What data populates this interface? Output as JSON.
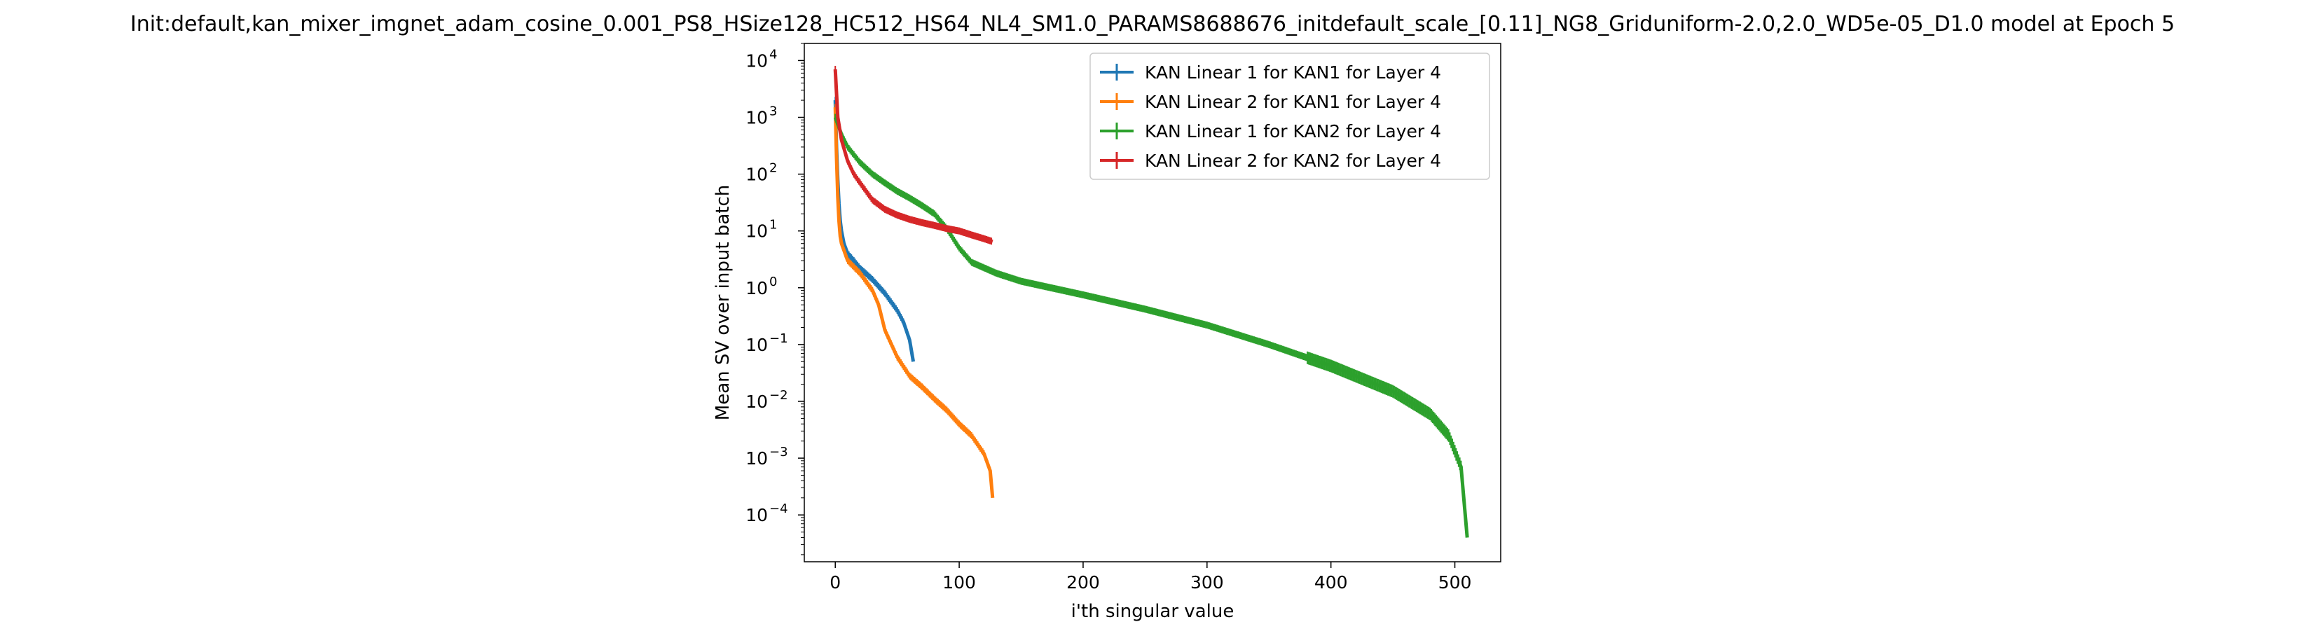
{
  "chart_data": {
    "type": "line",
    "title": "Init:default,kan_mixer_imgnet_adam_cosine_0.001_PS8_HSize128_HC512_HS64_NL4_SM1.0_PARAMS8688676_initdefault_scale_[0.11]_NG8_Griduniform-2.0,2.0_WD5e-05_D1.0 model at Epoch 5",
    "xlabel": "i'th singular value",
    "ylabel": "Mean SV over input batch",
    "yscale": "log",
    "xlim": [
      -25,
      537
    ],
    "ylim": [
      1.5e-05,
      20000
    ],
    "x_ticks": [
      0,
      100,
      200,
      300,
      400,
      500
    ],
    "y_ticks": [
      {
        "value": 0.0001,
        "base": "10",
        "exp": "−4"
      },
      {
        "value": 0.001,
        "base": "10",
        "exp": "−3"
      },
      {
        "value": 0.01,
        "base": "10",
        "exp": "−2"
      },
      {
        "value": 0.1,
        "base": "10",
        "exp": "−1"
      },
      {
        "value": 1,
        "base": "10",
        "exp": "0"
      },
      {
        "value": 10,
        "base": "10",
        "exp": "1"
      },
      {
        "value": 100,
        "base": "10",
        "exp": "2"
      },
      {
        "value": 1000,
        "base": "10",
        "exp": "3"
      },
      {
        "value": 10000,
        "base": "10",
        "exp": "4"
      }
    ],
    "grid": false,
    "legend_position": "top-right",
    "series": [
      {
        "name": "KAN Linear 1 for KAN1 for Layer 4",
        "color": "#1f77b4",
        "points": [
          [
            0,
            2000
          ],
          [
            1,
            300
          ],
          [
            2,
            80
          ],
          [
            3,
            30
          ],
          [
            4,
            15
          ],
          [
            5,
            10
          ],
          [
            7,
            6
          ],
          [
            10,
            4
          ],
          [
            15,
            3
          ],
          [
            20,
            2.2
          ],
          [
            30,
            1.4
          ],
          [
            40,
            0.8
          ],
          [
            50,
            0.4
          ],
          [
            55,
            0.25
          ],
          [
            60,
            0.12
          ],
          [
            63,
            0.05
          ]
        ]
      },
      {
        "name": "KAN Linear 2 for KAN1 for Layer 4",
        "color": "#ff7f0e",
        "points": [
          [
            0,
            1500
          ],
          [
            1,
            200
          ],
          [
            2,
            40
          ],
          [
            3,
            15
          ],
          [
            4,
            8
          ],
          [
            5,
            6
          ],
          [
            10,
            3
          ],
          [
            20,
            1.8
          ],
          [
            30,
            0.9
          ],
          [
            35,
            0.5
          ],
          [
            40,
            0.18
          ],
          [
            50,
            0.06
          ],
          [
            60,
            0.028
          ],
          [
            70,
            0.018
          ],
          [
            80,
            0.011
          ],
          [
            90,
            0.007
          ],
          [
            100,
            0.004
          ],
          [
            110,
            0.0025
          ],
          [
            120,
            0.0012
          ],
          [
            125,
            0.0006
          ],
          [
            127,
            0.0002
          ]
        ]
      },
      {
        "name": "KAN Linear 1 for KAN2 for Layer 4",
        "color": "#2ca02c",
        "points": [
          [
            0,
            1000
          ],
          [
            5,
            500
          ],
          [
            10,
            300
          ],
          [
            20,
            160
          ],
          [
            30,
            100
          ],
          [
            40,
            70
          ],
          [
            50,
            50
          ],
          [
            60,
            38
          ],
          [
            70,
            28
          ],
          [
            80,
            20
          ],
          [
            90,
            11
          ],
          [
            100,
            5
          ],
          [
            110,
            2.8
          ],
          [
            130,
            1.8
          ],
          [
            150,
            1.3
          ],
          [
            200,
            0.75
          ],
          [
            250,
            0.42
          ],
          [
            300,
            0.22
          ],
          [
            350,
            0.1
          ],
          [
            400,
            0.042
          ],
          [
            450,
            0.015
          ],
          [
            480,
            0.006
          ],
          [
            495,
            0.0025
          ],
          [
            505,
            0.0007
          ],
          [
            510,
            4e-05
          ]
        ]
      },
      {
        "name": "KAN Linear 2 for KAN2 for Layer 4",
        "color": "#d62728",
        "points": [
          [
            0,
            7000
          ],
          [
            2,
            1000
          ],
          [
            5,
            400
          ],
          [
            10,
            170
          ],
          [
            15,
            100
          ],
          [
            20,
            70
          ],
          [
            30,
            35
          ],
          [
            40,
            24
          ],
          [
            50,
            19
          ],
          [
            60,
            16
          ],
          [
            70,
            14
          ],
          [
            80,
            12.5
          ],
          [
            90,
            11
          ],
          [
            100,
            10
          ],
          [
            110,
            8.5
          ],
          [
            120,
            7.3
          ],
          [
            127,
            6.5
          ]
        ]
      }
    ]
  }
}
